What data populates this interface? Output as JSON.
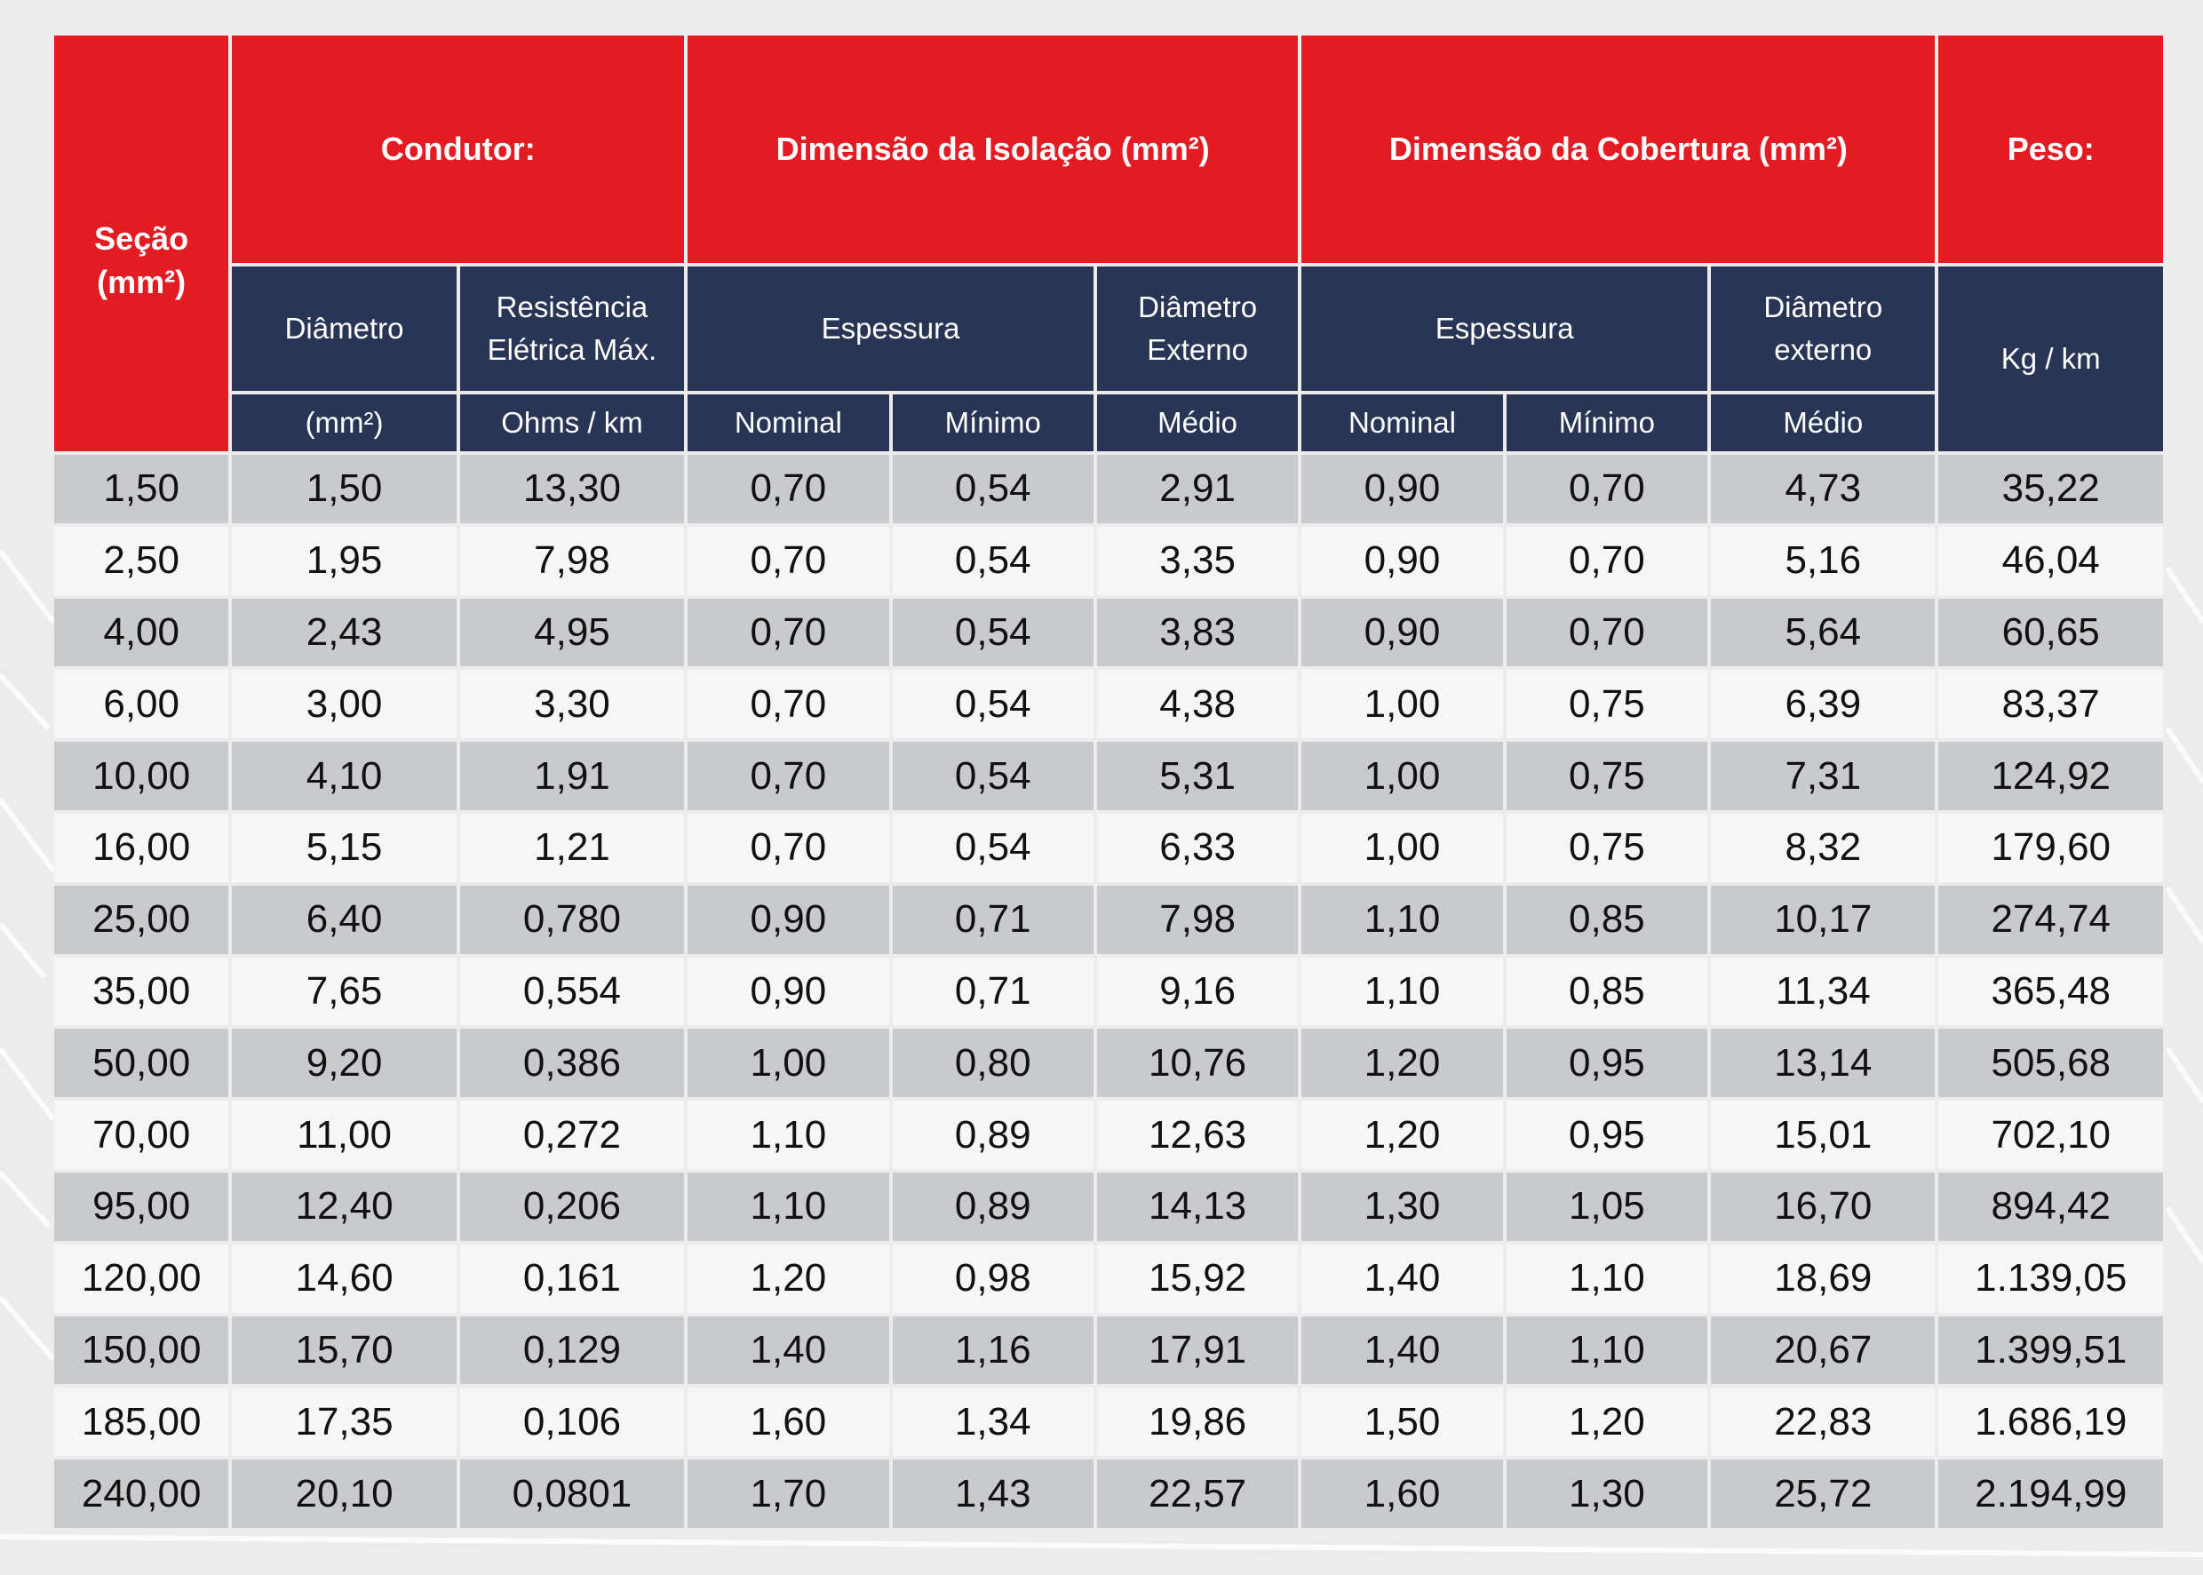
{
  "colors": {
    "header_red": "#e31b23",
    "header_navy": "#283555",
    "row_grey": "#c9cacd",
    "row_white": "#f6f6f6"
  },
  "headers": {
    "secao": [
      "Seção",
      "(mm²)"
    ],
    "condutor": "Condutor:",
    "isolacao": "Dimensão da Isolação (mm²)",
    "cobertura": "Dimensão da Cobertura (mm²)",
    "peso": "Peso:"
  },
  "subheaders": {
    "diametro": "Diâmetro",
    "resistencia": [
      "Resistência",
      "Elétrica Máx."
    ],
    "espessura_isolacao": "Espessura",
    "diametro_externo_isolacao": [
      "Diâmetro",
      "Externo"
    ],
    "espessura_cobertura": "Espessura",
    "diametro_externo_cobertura": [
      "Diâmetro",
      "externo"
    ],
    "kg_km": "Kg / km"
  },
  "units": {
    "diametro": "(mm²)",
    "resistencia": "Ohms / km",
    "iso_nominal": "Nominal",
    "iso_minimo": "Mínimo",
    "iso_medio": "Médio",
    "cob_nominal": "Nominal",
    "cob_minimo": "Mínimo",
    "cob_medio": "Médio"
  },
  "rows": [
    [
      "1,50",
      "1,50",
      "13,30",
      "0,70",
      "0,54",
      "2,91",
      "0,90",
      "0,70",
      "4,73",
      "35,22"
    ],
    [
      "2,50",
      "1,95",
      "7,98",
      "0,70",
      "0,54",
      "3,35",
      "0,90",
      "0,70",
      "5,16",
      "46,04"
    ],
    [
      "4,00",
      "2,43",
      "4,95",
      "0,70",
      "0,54",
      "3,83",
      "0,90",
      "0,70",
      "5,64",
      "60,65"
    ],
    [
      "6,00",
      "3,00",
      "3,30",
      "0,70",
      "0,54",
      "4,38",
      "1,00",
      "0,75",
      "6,39",
      "83,37"
    ],
    [
      "10,00",
      "4,10",
      "1,91",
      "0,70",
      "0,54",
      "5,31",
      "1,00",
      "0,75",
      "7,31",
      "124,92"
    ],
    [
      "16,00",
      "5,15",
      "1,21",
      "0,70",
      "0,54",
      "6,33",
      "1,00",
      "0,75",
      "8,32",
      "179,60"
    ],
    [
      "25,00",
      "6,40",
      "0,780",
      "0,90",
      "0,71",
      "7,98",
      "1,10",
      "0,85",
      "10,17",
      "274,74"
    ],
    [
      "35,00",
      "7,65",
      "0,554",
      "0,90",
      "0,71",
      "9,16",
      "1,10",
      "0,85",
      "11,34",
      "365,48"
    ],
    [
      "50,00",
      "9,20",
      "0,386",
      "1,00",
      "0,80",
      "10,76",
      "1,20",
      "0,95",
      "13,14",
      "505,68"
    ],
    [
      "70,00",
      "11,00",
      "0,272",
      "1,10",
      "0,89",
      "12,63",
      "1,20",
      "0,95",
      "15,01",
      "702,10"
    ],
    [
      "95,00",
      "12,40",
      "0,206",
      "1,10",
      "0,89",
      "14,13",
      "1,30",
      "1,05",
      "16,70",
      "894,42"
    ],
    [
      "120,00",
      "14,60",
      "0,161",
      "1,20",
      "0,98",
      "15,92",
      "1,40",
      "1,10",
      "18,69",
      "1.139,05"
    ],
    [
      "150,00",
      "15,70",
      "0,129",
      "1,40",
      "1,16",
      "17,91",
      "1,40",
      "1,10",
      "20,67",
      "1.399,51"
    ],
    [
      "185,00",
      "17,35",
      "0,106",
      "1,60",
      "1,34",
      "19,86",
      "1,50",
      "1,20",
      "22,83",
      "1.686,19"
    ],
    [
      "240,00",
      "20,10",
      "0,0801",
      "1,70",
      "1,43",
      "22,57",
      "1,60",
      "1,30",
      "25,72",
      "2.194,99"
    ]
  ]
}
